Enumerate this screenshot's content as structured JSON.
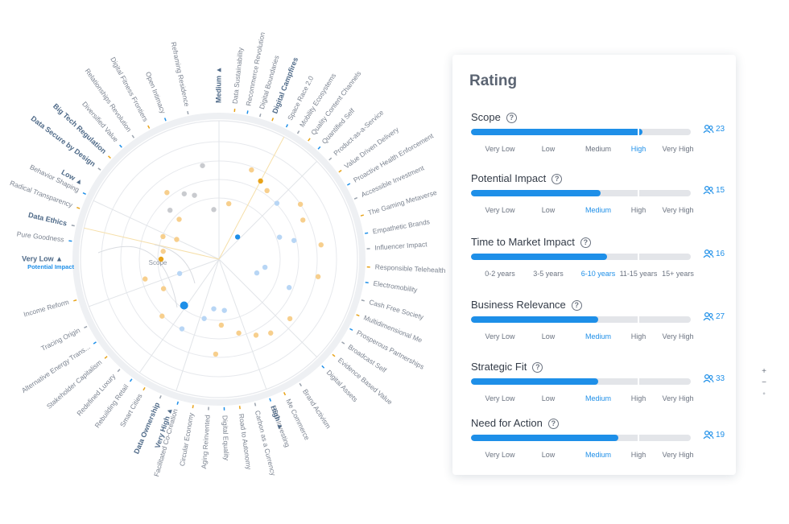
{
  "radar": {
    "center_label": "Scope",
    "ring_labels": [
      {
        "label": "Medium",
        "angle": -90
      },
      {
        "label": "Low",
        "angle": -151
      },
      {
        "label": "Very Low",
        "angle": 180
      },
      {
        "label": "Very High",
        "angle": 108
      },
      {
        "label": "High",
        "angle": 70
      }
    ],
    "ring_sublabel": "Potential Impact",
    "segments": [
      {
        "label": "Data Sustainability",
        "angle": -84
      },
      {
        "label": "Recommerce Revolution",
        "angle": -79
      },
      {
        "label": "Digital Boundaries",
        "angle": -74
      },
      {
        "label": "Digital Campfires",
        "angle": -69,
        "bold": true
      },
      {
        "label": "Space Race 2.0",
        "angle": -63
      },
      {
        "label": "Mobility Ecosystems",
        "angle": -58
      },
      {
        "label": "Quality Content Channels",
        "angle": -53
      },
      {
        "label": "Quantified Self",
        "angle": -48
      },
      {
        "label": "Product-as-a-Service",
        "angle": -42
      },
      {
        "label": "Value Driven Delivery",
        "angle": -36
      },
      {
        "label": "Proactive Health Enforcement",
        "angle": -30
      },
      {
        "label": "Accessible Investment",
        "angle": -24
      },
      {
        "label": "The Gaming Metaverse",
        "angle": -17
      },
      {
        "label": "Empathetic Brands",
        "angle": -10
      },
      {
        "label": "Influencer Impact",
        "angle": -4
      },
      {
        "label": "Responsible Telehealth",
        "angle": 3
      },
      {
        "label": "Electromobility",
        "angle": 9
      },
      {
        "label": "Cash Free Society",
        "angle": 16
      },
      {
        "label": "Multidimensional Me",
        "angle": 22
      },
      {
        "label": "Prosperous Partnerships",
        "angle": 28
      },
      {
        "label": "Broadcast Self",
        "angle": 34
      },
      {
        "label": "Evidence Based Value",
        "angle": 40
      },
      {
        "label": "Digital Assets",
        "angle": 46
      },
      {
        "label": "Brand Activism",
        "angle": 57
      },
      {
        "label": "Me Commerce",
        "angle": 64
      },
      {
        "label": "ESG Investing",
        "angle": 70
      },
      {
        "label": "Carbon as a Currency",
        "angle": 76
      },
      {
        "label": "Road to Autonomy",
        "angle": 82
      },
      {
        "label": "Digital Equality",
        "angle": 88
      },
      {
        "label": "Aging Reinvented",
        "angle": 94
      },
      {
        "label": "Circular Economy",
        "angle": 100
      },
      {
        "label": "Facilitated Co-Creation",
        "angle": 106
      },
      {
        "label": "Data Ownership",
        "angle": 113,
        "bold": true
      },
      {
        "label": "Smart Cities",
        "angle": 120
      },
      {
        "label": "Rebuilding Retail",
        "angle": 126
      },
      {
        "label": "Redefined Luxury",
        "angle": 132
      },
      {
        "label": "Stakeholder Capitalism",
        "angle": 139
      },
      {
        "label": "Alternative Energy Trans...",
        "angle": 146
      },
      {
        "label": "Tracing Origin",
        "angle": 153
      },
      {
        "label": "Income Reform",
        "angle": 164
      },
      {
        "label": "Pure Goodness",
        "angle": -173
      },
      {
        "label": "Data Ethics",
        "angle": -167,
        "bold": true
      },
      {
        "label": "Radical Transparency",
        "angle": -160
      },
      {
        "label": "Behavior Shaping",
        "angle": -154
      },
      {
        "label": "Data Secure by Design",
        "angle": -143,
        "bold": true
      },
      {
        "label": "Big Tech Regulation",
        "angle": -137,
        "bold": true
      },
      {
        "label": "Diversified Value",
        "angle": -131
      },
      {
        "label": "Relationships Revolution",
        "angle": -125
      },
      {
        "label": "Digital Fitness Frontiers",
        "angle": -118
      },
      {
        "label": "Open Intimacy",
        "angle": -111
      },
      {
        "label": "Reframing Residence",
        "angle": -102
      }
    ],
    "points": [
      {
        "a": -135,
        "r": 70,
        "c": "#f7cf8d"
      },
      {
        "a": -128,
        "r": 105,
        "c": "#f7cf8d"
      },
      {
        "a": -118,
        "r": 92,
        "c": "#c9cbcf"
      },
      {
        "a": -111,
        "r": 85,
        "c": "#c9cbcf"
      },
      {
        "a": -100,
        "r": 118,
        "c": "#c9cbcf"
      },
      {
        "a": -70,
        "r": 118,
        "c": "#f7cf8d"
      },
      {
        "a": -62,
        "r": 110,
        "c": "#e8a319"
      },
      {
        "a": -55,
        "r": 104,
        "c": "#f7cf8d"
      },
      {
        "a": -44,
        "r": 100,
        "c": "#b8d6f5"
      },
      {
        "a": -34,
        "r": 122,
        "c": "#f7cf8d"
      },
      {
        "a": -25,
        "r": 115,
        "c": "#f7cf8d"
      },
      {
        "a": -20,
        "r": 80,
        "c": "#b8d6f5"
      },
      {
        "a": -14,
        "r": 96,
        "c": "#b8d6f5"
      },
      {
        "a": -8,
        "r": 128,
        "c": "#f7cf8d"
      },
      {
        "a": 10,
        "r": 125,
        "c": "#f7cf8d"
      },
      {
        "a": 22,
        "r": 94,
        "c": "#b8d6f5"
      },
      {
        "a": 55,
        "r": 112,
        "c": "#f7cf8d"
      },
      {
        "a": 64,
        "r": 105,
        "c": "#f7cf8d"
      },
      {
        "a": 75,
        "r": 95,
        "c": "#f7cf8d"
      },
      {
        "a": 88,
        "r": 82,
        "c": "#f7cf8d"
      },
      {
        "a": 92,
        "r": 118,
        "c": "#f7cf8d"
      },
      {
        "a": 104,
        "r": 76,
        "c": "#b8d6f5"
      },
      {
        "a": 118,
        "r": 98,
        "c": "#b8d6f5"
      },
      {
        "a": 127,
        "r": 72,
        "c": "#1e8fe8",
        "big": true
      },
      {
        "a": 135,
        "r": 100,
        "c": "#f7cf8d"
      },
      {
        "a": 152,
        "r": 78,
        "c": "#f7cf8d"
      },
      {
        "a": 165,
        "r": 95,
        "c": "#f7cf8d"
      },
      {
        "a": -172,
        "r": 70,
        "c": "#f7cf8d"
      },
      {
        "a": -180,
        "r": 72,
        "c": "#e8a319"
      },
      {
        "a": -158,
        "r": 75,
        "c": "#f7cf8d"
      },
      {
        "a": -135,
        "r": 86,
        "c": "#c9cbcf"
      },
      {
        "a": -50,
        "r": 36,
        "c": "#1e8fe8"
      },
      {
        "a": 20,
        "r": 50,
        "c": "#b8d6f5"
      },
      {
        "a": 10,
        "r": 58,
        "c": "#b8d6f5"
      },
      {
        "a": 160,
        "r": 52,
        "c": "#b8d6f5"
      },
      {
        "a": -80,
        "r": 70,
        "c": "#f7cf8d"
      },
      {
        "a": -96,
        "r": 62,
        "c": "#c9cbcf"
      },
      {
        "a": 40,
        "r": 115,
        "c": "#f7cf8d"
      },
      {
        "a": -155,
        "r": 58,
        "c": "#f7cf8d"
      },
      {
        "a": 96,
        "r": 62,
        "c": "#b8d6f5"
      },
      {
        "a": 84,
        "r": 64,
        "c": "#b8d6f5"
      }
    ]
  },
  "panel": {
    "title": "Rating",
    "criteria": [
      {
        "title": "Scope",
        "value": 0.78,
        "votes": "23",
        "scale": [
          "Very Low",
          "Low",
          "Medium",
          "High",
          "Very High"
        ],
        "selected": 3
      },
      {
        "title": "Potential Impact",
        "value": 0.59,
        "votes": "15",
        "scale": [
          "Very Low",
          "Low",
          "Medium",
          "High",
          "Very High"
        ],
        "selected": 2
      },
      {
        "title": "Time to Market Impact",
        "value": 0.62,
        "votes": "16",
        "scale": [
          "0-2 years",
          "3-5 years",
          "6-10 years",
          "11-15 years",
          "15+ years"
        ],
        "selected": 2
      },
      {
        "title": "Business Relevance",
        "value": 0.58,
        "votes": "27",
        "scale": [
          "Very Low",
          "Low",
          "Medium",
          "High",
          "Very High"
        ],
        "selected": 2
      },
      {
        "title": "Strategic Fit",
        "value": 0.58,
        "votes": "33",
        "scale": [
          "Very Low",
          "Low",
          "Medium",
          "High",
          "Very High"
        ],
        "selected": 2
      },
      {
        "title": "Need for Action",
        "value": 0.67,
        "votes": "19",
        "scale": [
          "Very Low",
          "Low",
          "Medium",
          "High",
          "Very High"
        ],
        "selected": 2
      }
    ]
  },
  "zoom": {
    "plus": "+",
    "minus": "−",
    "reset": "◦"
  },
  "colors": {
    "accent": "#1e8fe8",
    "track": "#e3e5e9",
    "amber": "#e8a319"
  }
}
